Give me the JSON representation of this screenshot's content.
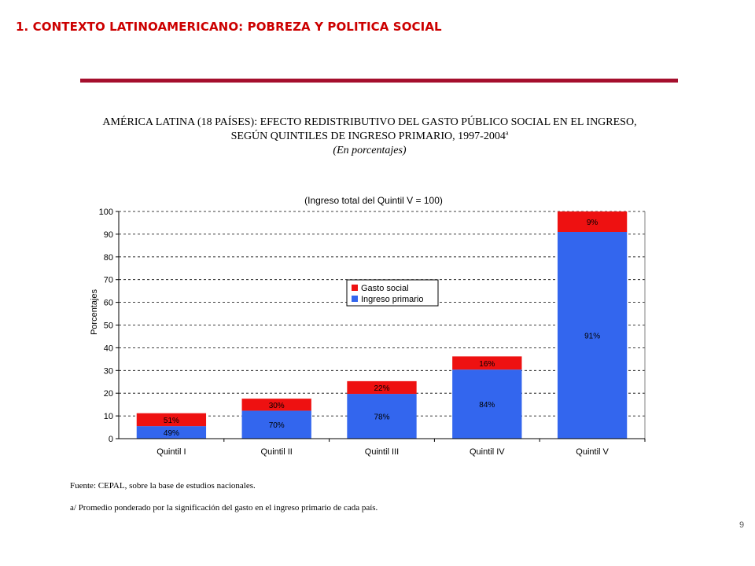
{
  "slide": {
    "title": "1. CONTEXTO LATINOAMERICANO: POBREZA Y POLITICA SOCIAL",
    "page_number": "9",
    "accent_color": "#cc0000",
    "bar_color": "#a50f2d"
  },
  "chart_heading": {
    "line1": "AMÉRICA LATINA (18 PAÍSES): EFECTO REDISTRIBUTIVO DEL GASTO PÚBLICO SOCIAL EN EL INGRESO,",
    "line2": "SEGÚN QUINTILES DE INGRESO PRIMARIO, 1997-2004",
    "superscript": "a",
    "unit": "(En porcentajes)"
  },
  "chart_data": {
    "type": "bar",
    "stacked": true,
    "title": "(Ingreso total del Quintil V = 100)",
    "xlabel": "",
    "ylabel": "Porcentajes",
    "ylim": [
      0,
      100
    ],
    "yticks": [
      0,
      10,
      20,
      30,
      40,
      50,
      60,
      70,
      80,
      90,
      100
    ],
    "grid": "horizontal dashed",
    "legend_position": "center",
    "categories": [
      "Quintil I",
      "Quintil II",
      "Quintil III",
      "Quintil IV",
      "Quintil V"
    ],
    "series": [
      {
        "name": "Ingreso primario",
        "color": "#3366ee",
        "values": [
          5.5,
          12.3,
          19.7,
          30.4,
          91.0
        ],
        "labels": [
          "49%",
          "70%",
          "78%",
          "84%",
          "91%"
        ]
      },
      {
        "name": "Gasto social",
        "color": "#ee1111",
        "values": [
          5.7,
          5.3,
          5.6,
          5.8,
          9.0
        ],
        "labels": [
          "51%",
          "30%",
          "22%",
          "16%",
          "9%"
        ]
      }
    ],
    "legend_order": [
      "Gasto social",
      "Ingreso primario"
    ]
  },
  "notes": {
    "source": "Fuente: CEPAL, sobre la base de estudios nacionales.",
    "footnote": "a/ Promedio ponderado por la significación del gasto en el ingreso primario de cada país."
  }
}
